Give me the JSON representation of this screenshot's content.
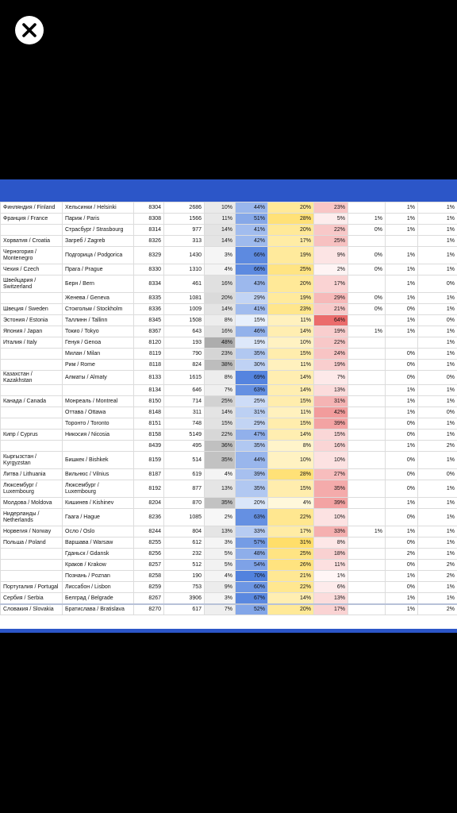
{
  "close_icon": "x-icon",
  "colors": {
    "frame_blue": "#2c56c8",
    "background": "#000000",
    "heat_blue": "#4a7ee0",
    "heat_yellow": "#ffd966",
    "heat_red": "#e06666"
  },
  "rows": [
    {
      "country": "Финляндия / Finland",
      "city": "Хельсинки / Helsinki",
      "id": "8304",
      "n": "2686",
      "p1": "10%",
      "p2": "44%",
      "p3": "20%",
      "p4": "23%",
      "p5": "",
      "p6": "1%",
      "p7": "1%",
      "p8": "1%"
    },
    {
      "country": "Франция / France",
      "city": "Париж / Paris",
      "id": "8308",
      "n": "1566",
      "p1": "11%",
      "p2": "51%",
      "p3": "28%",
      "p4": "5%",
      "p5": "1%",
      "p6": "1%",
      "p7": "1%",
      "p8": "3%"
    },
    {
      "country": "",
      "city": "Страсбург / Strasbourg",
      "id": "8314",
      "n": "977",
      "p1": "14%",
      "p2": "41%",
      "p3": "20%",
      "p4": "22%",
      "p5": "0%",
      "p6": "1%",
      "p7": "1%",
      "p8": "1%"
    },
    {
      "country": "Хорватия / Croatia",
      "city": "Загреб / Zagreb",
      "id": "8326",
      "n": "313",
      "p1": "14%",
      "p2": "42%",
      "p3": "17%",
      "p4": "25%",
      "p5": "",
      "p6": "",
      "p7": "1%",
      "p8": "2%"
    },
    {
      "country": "Черногория / Montenegro",
      "city": "Подгорица / Podgorica",
      "id": "8329",
      "n": "1430",
      "p1": "3%",
      "p2": "66%",
      "p3": "19%",
      "p4": "9%",
      "p5": "0%",
      "p6": "1%",
      "p7": "1%",
      "p8": "2%"
    },
    {
      "country": "Чехия / Czech",
      "city": "Прага / Prague",
      "id": "8330",
      "n": "1310",
      "p1": "4%",
      "p2": "66%",
      "p3": "25%",
      "p4": "2%",
      "p5": "0%",
      "p6": "1%",
      "p7": "1%",
      "p8": "1%"
    },
    {
      "country": "Швейцария / Switzerland",
      "city": "Берн / Bern",
      "id": "8334",
      "n": "461",
      "p1": "16%",
      "p2": "43%",
      "p3": "20%",
      "p4": "17%",
      "p5": "",
      "p6": "1%",
      "p7": "0%",
      "p8": "2%"
    },
    {
      "country": "",
      "city": "Женева / Geneva",
      "id": "8335",
      "n": "1081",
      "p1": "20%",
      "p2": "29%",
      "p3": "19%",
      "p4": "29%",
      "p5": "0%",
      "p6": "1%",
      "p7": "1%",
      "p8": "1%"
    },
    {
      "country": "Швеция / Sweden",
      "city": "Стокгольм / Stockholm",
      "id": "8336",
      "n": "1009",
      "p1": "14%",
      "p2": "41%",
      "p3": "23%",
      "p4": "21%",
      "p5": "0%",
      "p6": "0%",
      "p7": "1%",
      "p8": "1%"
    },
    {
      "country": "Эстония / Estonia",
      "city": "Таллинн / Tallinn",
      "id": "8345",
      "n": "1508",
      "p1": "8%",
      "p2": "15%",
      "p3": "11%",
      "p4": "64%",
      "p5": "",
      "p6": "1%",
      "p7": "0%",
      "p8": "1%"
    },
    {
      "country": "Япония / Japan",
      "city": "Токио / Tokyo",
      "id": "8367",
      "n": "643",
      "p1": "16%",
      "p2": "46%",
      "p3": "14%",
      "p4": "19%",
      "p5": "1%",
      "p6": "1%",
      "p7": "1%",
      "p8": "2%"
    },
    {
      "country": "Италия / Italy",
      "city": "Генуя / Genoa",
      "id": "8120",
      "n": "193",
      "p1": "48%",
      "p2": "19%",
      "p3": "10%",
      "p4": "22%",
      "p5": "",
      "p6": "",
      "p7": "1%",
      "p8": "1%"
    },
    {
      "country": "",
      "city": "Милан / Milan",
      "id": "8119",
      "n": "790",
      "p1": "23%",
      "p2": "35%",
      "p3": "15%",
      "p4": "24%",
      "p5": "",
      "p6": "0%",
      "p7": "1%",
      "p8": "1%"
    },
    {
      "country": "",
      "city": "Рим / Rome",
      "id": "8118",
      "n": "824",
      "p1": "38%",
      "p2": "30%",
      "p3": "11%",
      "p4": "19%",
      "p5": "",
      "p6": "0%",
      "p7": "1%",
      "p8": "1%"
    },
    {
      "country": "Казахстан / Kazakhstan",
      "city": "Алматы / Almaty",
      "id": "8133",
      "n": "1615",
      "p1": "8%",
      "p2": "69%",
      "p3": "14%",
      "p4": "7%",
      "p5": "",
      "p6": "0%",
      "p7": "0%",
      "p8": "1%"
    },
    {
      "country": "",
      "city": "",
      "id": "8134",
      "n": "646",
      "p1": "7%",
      "p2": "63%",
      "p3": "14%",
      "p4": "13%",
      "p5": "",
      "p6": "1%",
      "p7": "1%",
      "p8": "1%"
    },
    {
      "country": "Канада / Canada",
      "city": "Монреаль / Montreal",
      "id": "8150",
      "n": "714",
      "p1": "25%",
      "p2": "25%",
      "p3": "15%",
      "p4": "31%",
      "p5": "",
      "p6": "1%",
      "p7": "1%",
      "p8": "2%"
    },
    {
      "country": "",
      "city": "Оттава / Ottawa",
      "id": "8148",
      "n": "311",
      "p1": "14%",
      "p2": "31%",
      "p3": "11%",
      "p4": "42%",
      "p5": "",
      "p6": "1%",
      "p7": "0%",
      "p8": "1%"
    },
    {
      "country": "",
      "city": "Торонто / Toronto",
      "id": "8151",
      "n": "748",
      "p1": "15%",
      "p2": "29%",
      "p3": "15%",
      "p4": "39%",
      "p5": "",
      "p6": "0%",
      "p7": "1%",
      "p8": "1%"
    },
    {
      "country": "Кипр / Cyprus",
      "city": "Никосия / Nicosia",
      "id": "8158",
      "n": "5149",
      "p1": "22%",
      "p2": "47%",
      "p3": "14%",
      "p4": "15%",
      "p5": "",
      "p6": "0%",
      "p7": "1%",
      "p8": "2%"
    },
    {
      "country": "",
      "city": "",
      "id": "8439",
      "n": "495",
      "p1": "36%",
      "p2": "35%",
      "p3": "8%",
      "p4": "16%",
      "p5": "",
      "p6": "1%",
      "p7": "2%",
      "p8": "2%"
    },
    {
      "country": "Кыргызстан / Kyrgyzstan",
      "city": "Бишкек / Bishkek",
      "id": "8159",
      "n": "514",
      "p1": "35%",
      "p2": "44%",
      "p3": "10%",
      "p4": "10%",
      "p5": "",
      "p6": "0%",
      "p7": "1%",
      "p8": "1%"
    },
    {
      "country": "Литва / Lithuania",
      "city": "Вильнюс / Vilnius",
      "id": "8187",
      "n": "619",
      "p1": "4%",
      "p2": "39%",
      "p3": "28%",
      "p4": "27%",
      "p5": "",
      "p6": "0%",
      "p7": "0%",
      "p8": "2%"
    },
    {
      "country": "Люксембург / Luxembourg",
      "city": "Люксембург / Luxembourg",
      "id": "8192",
      "n": "877",
      "p1": "13%",
      "p2": "35%",
      "p3": "15%",
      "p4": "35%",
      "p5": "",
      "p6": "0%",
      "p7": "1%",
      "p8": "1%"
    },
    {
      "country": "Молдова / Moldova",
      "city": "Кишинев / Kishinev",
      "id": "8204",
      "n": "870",
      "p1": "35%",
      "p2": "20%",
      "p3": "4%",
      "p4": "39%",
      "p5": "",
      "p6": "1%",
      "p7": "1%",
      "p8": "1%"
    },
    {
      "country": "Нидерланды / Netherlands",
      "city": "Гаага / Hague",
      "id": "8236",
      "n": "1085",
      "p1": "2%",
      "p2": "63%",
      "p3": "22%",
      "p4": "10%",
      "p5": "",
      "p6": "0%",
      "p7": "1%",
      "p8": "2%"
    },
    {
      "country": "Норвегия / Norway",
      "city": "Осло / Oslo",
      "id": "8244",
      "n": "804",
      "p1": "13%",
      "p2": "33%",
      "p3": "17%",
      "p4": "33%",
      "p5": "1%",
      "p6": "1%",
      "p7": "1%",
      "p8": "2%"
    },
    {
      "country": "Польша / Poland",
      "city": "Варшава / Warsaw",
      "id": "8255",
      "n": "612",
      "p1": "3%",
      "p2": "57%",
      "p3": "31%",
      "p4": "8%",
      "p5": "",
      "p6": "0%",
      "p7": "1%",
      "p8": "1%"
    },
    {
      "country": "",
      "city": "Гданьск / Gdansk",
      "id": "8256",
      "n": "232",
      "p1": "5%",
      "p2": "48%",
      "p3": "25%",
      "p4": "18%",
      "p5": "",
      "p6": "2%",
      "p7": "1%",
      "p8": "3%"
    },
    {
      "country": "",
      "city": "Краков / Krakow",
      "id": "8257",
      "n": "512",
      "p1": "5%",
      "p2": "54%",
      "p3": "26%",
      "p4": "11%",
      "p5": "",
      "p6": "0%",
      "p7": "2%",
      "p8": "1%"
    },
    {
      "country": "",
      "city": "Познань / Poznan",
      "id": "8258",
      "n": "190",
      "p1": "4%",
      "p2": "70%",
      "p3": "21%",
      "p4": "1%",
      "p5": "",
      "p6": "1%",
      "p7": "2%",
      "p8": "2%"
    },
    {
      "country": "Португалия / Portugal",
      "city": "Лиссабон / Lisbon",
      "id": "8259",
      "n": "753",
      "p1": "9%",
      "p2": "60%",
      "p3": "22%",
      "p4": "6%",
      "p5": "",
      "p6": "0%",
      "p7": "1%",
      "p8": "1%"
    },
    {
      "country": "Сербия / Serbia",
      "city": "Белград / Belgrade",
      "id": "8267",
      "n": "3906",
      "p1": "3%",
      "p2": "67%",
      "p3": "14%",
      "p4": "13%",
      "p5": "",
      "p6": "1%",
      "p7": "1%",
      "p8": "1%"
    },
    {
      "country": "Словакия / Slovakia",
      "city": "Братислава / Bratislava",
      "id": "8270",
      "n": "617",
      "p1": "7%",
      "p2": "52%",
      "p3": "20%",
      "p4": "17%",
      "p5": "",
      "p6": "1%",
      "p7": "2%",
      "p8": "1%"
    }
  ]
}
